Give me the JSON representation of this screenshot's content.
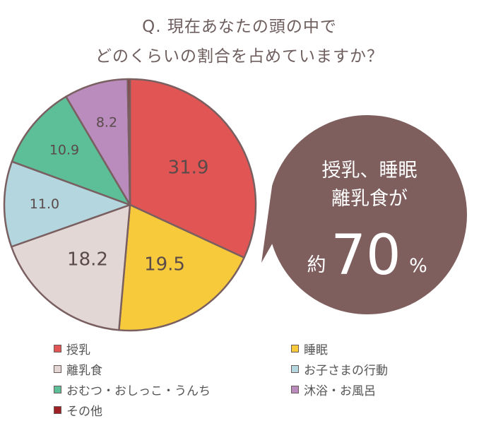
{
  "title": {
    "line1": "Q. 現在あなたの頭の中で",
    "line2": "どのくらいの割合を占めていますか？"
  },
  "chart_data": {
    "type": "pie",
    "slices": [
      {
        "label": "授乳",
        "value": 31.9,
        "display": "31.9",
        "color": "#e15654"
      },
      {
        "label": "睡眠",
        "value": 19.5,
        "display": "19.5",
        "color": "#f7ca3c"
      },
      {
        "label": "離乳食",
        "value": 18.2,
        "display": "18.2",
        "color": "#e3d7d5"
      },
      {
        "label": "お子さまの行動",
        "value": 11.0,
        "display": "11.0",
        "color": "#b3d6df"
      },
      {
        "label": "おむつ・おしっこ・うんち",
        "value": 10.9,
        "display": "10.9",
        "color": "#5cbf98"
      },
      {
        "label": "沐浴・お風呂",
        "value": 8.2,
        "display": "8.2",
        "color": "#b98cbd"
      },
      {
        "label": "その他",
        "value": 0.3,
        "display": "",
        "color": "#9e2024"
      }
    ],
    "start": "top",
    "direction": "clockwise"
  },
  "callout": {
    "line1": "授乳、睡眠",
    "line2": "離乳食が",
    "prefix": "約",
    "number": "70",
    "unit": "%",
    "color": "#7e5f5e"
  }
}
